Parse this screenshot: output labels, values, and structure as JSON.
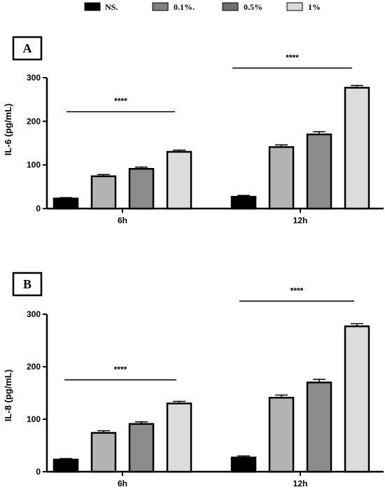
{
  "legend": {
    "items": [
      {
        "label": "NS.",
        "color": "#000000"
      },
      {
        "label": "0.1%.",
        "color": "#808080"
      },
      {
        "label": "0.5%",
        "color": "#6e6e6e"
      },
      {
        "label": "1%",
        "color": "#d9d9d9"
      }
    ]
  },
  "chart_data": [
    {
      "type": "bar",
      "panel": "A",
      "ylabel": "IL-6 (pg/mL)",
      "xlabel": "",
      "ylim": [
        0,
        300
      ],
      "yticks": [
        "0",
        "100",
        "200",
        "300"
      ],
      "categories": [
        "6h",
        "12h"
      ],
      "series": [
        {
          "name": "NS.",
          "color": "#000000",
          "values": [
            23,
            27
          ],
          "errors": [
            2,
            3
          ]
        },
        {
          "name": "0.1%.",
          "color": "#b3b3b3",
          "values": [
            74,
            141
          ],
          "errors": [
            4,
            5
          ]
        },
        {
          "name": "0.5%",
          "color": "#8c8c8c",
          "values": [
            91,
            170
          ],
          "errors": [
            4,
            6
          ]
        },
        {
          "name": "1%",
          "color": "#dcdcdc",
          "values": [
            130,
            277
          ],
          "errors": [
            4,
            5
          ]
        }
      ],
      "significance": [
        {
          "group": "6h",
          "label": "****",
          "y": 222
        },
        {
          "group": "12h",
          "label": "****",
          "y": 322
        }
      ]
    },
    {
      "type": "bar",
      "panel": "B",
      "ylabel": "IL-8 (pg/mL)",
      "xlabel": "",
      "ylim": [
        0,
        300
      ],
      "yticks": [
        "0",
        "100",
        "200",
        "300"
      ],
      "categories": [
        "6h",
        "12h"
      ],
      "series": [
        {
          "name": "NS.",
          "color": "#000000",
          "values": [
            23,
            27
          ],
          "errors": [
            2,
            3
          ]
        },
        {
          "name": "0.1%.",
          "color": "#b3b3b3",
          "values": [
            74,
            141
          ],
          "errors": [
            4,
            5
          ]
        },
        {
          "name": "0.5%",
          "color": "#8c8c8c",
          "values": [
            91,
            170
          ],
          "errors": [
            4,
            6
          ]
        },
        {
          "name": "1%",
          "color": "#dcdcdc",
          "values": [
            130,
            277
          ],
          "errors": [
            4,
            5
          ]
        }
      ],
      "significance": [
        {
          "group": "6h",
          "label": "****",
          "y": 175
        },
        {
          "group": "12h",
          "label": "****",
          "y": 325
        }
      ]
    }
  ]
}
